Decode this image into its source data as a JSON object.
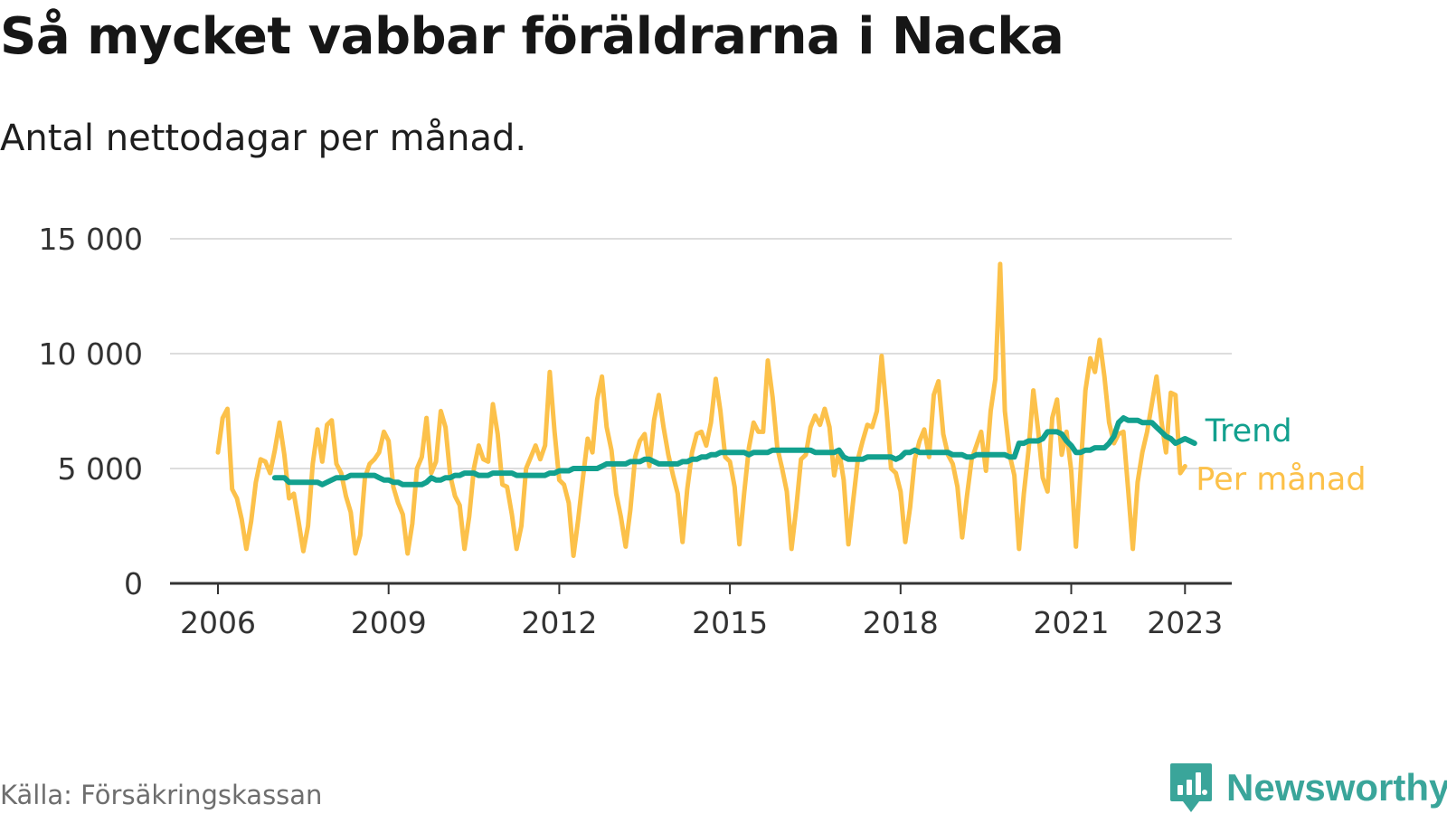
{
  "title": "Så mycket vabbar föräldrarna i Nacka",
  "subtitle": "Antal nettodagar per månad.",
  "source": "Källa: Försäkringskassan",
  "brand": {
    "name": "Newsworthy",
    "icon": "newsworthy-logo-icon"
  },
  "colors": {
    "monthly": "#fcc14a",
    "trend": "#12a08e",
    "grid": "#dddddd",
    "axis": "#333333",
    "text": "#333333"
  },
  "chart_data": {
    "type": "line",
    "title": "Så mycket vabbar föräldrarna i Nacka",
    "subtitle": "Antal nettodagar per månad.",
    "ylim": [
      0,
      15000
    ],
    "y_ticks": [
      0,
      5000,
      10000,
      15000
    ],
    "y_tick_labels": [
      "0",
      "5 000",
      "10 000",
      "15 000"
    ],
    "x_ticks": [
      2006,
      2009,
      2012,
      2015,
      2018,
      2021,
      2023
    ],
    "x_tick_labels": [
      "2006",
      "2009",
      "2012",
      "2015",
      "2018",
      "2021",
      "2023"
    ],
    "grid": "horizontal",
    "legend": "inline labels at right end of lines",
    "series": [
      {
        "name": "Per månad",
        "start": "2006-01",
        "frequency": "monthly",
        "values": [
          5700,
          7200,
          7600,
          4100,
          3700,
          2800,
          1500,
          2700,
          4400,
          5400,
          5300,
          4800,
          5800,
          7000,
          5600,
          3700,
          3900,
          2700,
          1400,
          2500,
          5200,
          6700,
          5300,
          6900,
          7100,
          5200,
          4800,
          3800,
          3100,
          1300,
          2100,
          4600,
          5200,
          5400,
          5700,
          6600,
          6200,
          4200,
          3500,
          3000,
          1300,
          2600,
          5000,
          5500,
          7200,
          4800,
          5300,
          7500,
          6800,
          4700,
          3800,
          3400,
          1500,
          2900,
          5000,
          6000,
          5400,
          5300,
          7800,
          6500,
          4300,
          4200,
          3000,
          1500,
          2500,
          5000,
          5500,
          6000,
          5400,
          6000,
          9200,
          6600,
          4500,
          4300,
          3500,
          1200,
          2800,
          4600,
          6300,
          5700,
          8000,
          9000,
          6800,
          5800,
          3900,
          2900,
          1600,
          3200,
          5500,
          6200,
          6500,
          5100,
          7100,
          8200,
          6800,
          5600,
          4700,
          3900,
          1800,
          4100,
          5700,
          6500,
          6600,
          6000,
          7000,
          8900,
          7500,
          5500,
          5300,
          4200,
          1700,
          3900,
          5900,
          7000,
          6600,
          6600,
          9700,
          8100,
          5900,
          5000,
          4000,
          1500,
          3300,
          5400,
          5600,
          6800,
          7300,
          6900,
          7600,
          6800,
          4700,
          5800,
          4500,
          1700,
          3600,
          5400,
          6200,
          6900,
          6800,
          7500,
          9900,
          7600,
          5000,
          4800,
          4000,
          1800,
          3300,
          5400,
          6200,
          6700,
          5500,
          8200,
          8800,
          6500,
          5600,
          5200,
          4200,
          2000,
          3800,
          5400,
          6000,
          6600,
          4900,
          7500,
          8900,
          13900,
          7500,
          5600,
          4700,
          1500,
          3900,
          5800,
          8400,
          6700,
          4600,
          4000,
          7200,
          8000,
          5600,
          6600,
          4900,
          1600,
          5000,
          8400,
          9800,
          9200,
          10600,
          9000,
          7000,
          6100,
          6500,
          6600,
          4100,
          1500,
          4400,
          5700,
          6600,
          7800,
          9000,
          7100,
          5700,
          8300,
          8200,
          4800,
          5100
        ]
      },
      {
        "name": "Trend",
        "start": "2007-01",
        "frequency": "monthly",
        "values": [
          4600,
          4600,
          4600,
          4400,
          4400,
          4400,
          4400,
          4400,
          4400,
          4400,
          4300,
          4400,
          4500,
          4600,
          4600,
          4600,
          4700,
          4700,
          4700,
          4700,
          4700,
          4700,
          4600,
          4500,
          4500,
          4400,
          4400,
          4300,
          4300,
          4300,
          4300,
          4300,
          4400,
          4600,
          4500,
          4500,
          4600,
          4600,
          4700,
          4700,
          4800,
          4800,
          4800,
          4700,
          4700,
          4700,
          4800,
          4800,
          4800,
          4800,
          4800,
          4700,
          4700,
          4700,
          4700,
          4700,
          4700,
          4700,
          4800,
          4800,
          4900,
          4900,
          4900,
          5000,
          5000,
          5000,
          5000,
          5000,
          5000,
          5100,
          5200,
          5200,
          5200,
          5200,
          5200,
          5300,
          5300,
          5300,
          5400,
          5400,
          5300,
          5200,
          5200,
          5200,
          5200,
          5200,
          5300,
          5300,
          5400,
          5400,
          5500,
          5500,
          5600,
          5600,
          5700,
          5700,
          5700,
          5700,
          5700,
          5700,
          5600,
          5700,
          5700,
          5700,
          5700,
          5800,
          5800,
          5800,
          5800,
          5800,
          5800,
          5800,
          5800,
          5800,
          5700,
          5700,
          5700,
          5700,
          5700,
          5800,
          5500,
          5400,
          5400,
          5400,
          5400,
          5500,
          5500,
          5500,
          5500,
          5500,
          5500,
          5400,
          5500,
          5700,
          5700,
          5800,
          5700,
          5700,
          5700,
          5700,
          5700,
          5700,
          5700,
          5600,
          5600,
          5600,
          5500,
          5500,
          5600,
          5600,
          5600,
          5600,
          5600,
          5600,
          5600,
          5500,
          5500,
          6100,
          6100,
          6200,
          6200,
          6200,
          6300,
          6600,
          6600,
          6600,
          6500,
          6200,
          6000,
          5700,
          5700,
          5800,
          5800,
          5900,
          5900,
          5900,
          6100,
          6400,
          7000,
          7200,
          7100,
          7100,
          7100,
          7000,
          7000,
          7000,
          6800,
          6600,
          6400,
          6300,
          6100,
          6200,
          6300,
          6200,
          6100
        ]
      }
    ]
  }
}
